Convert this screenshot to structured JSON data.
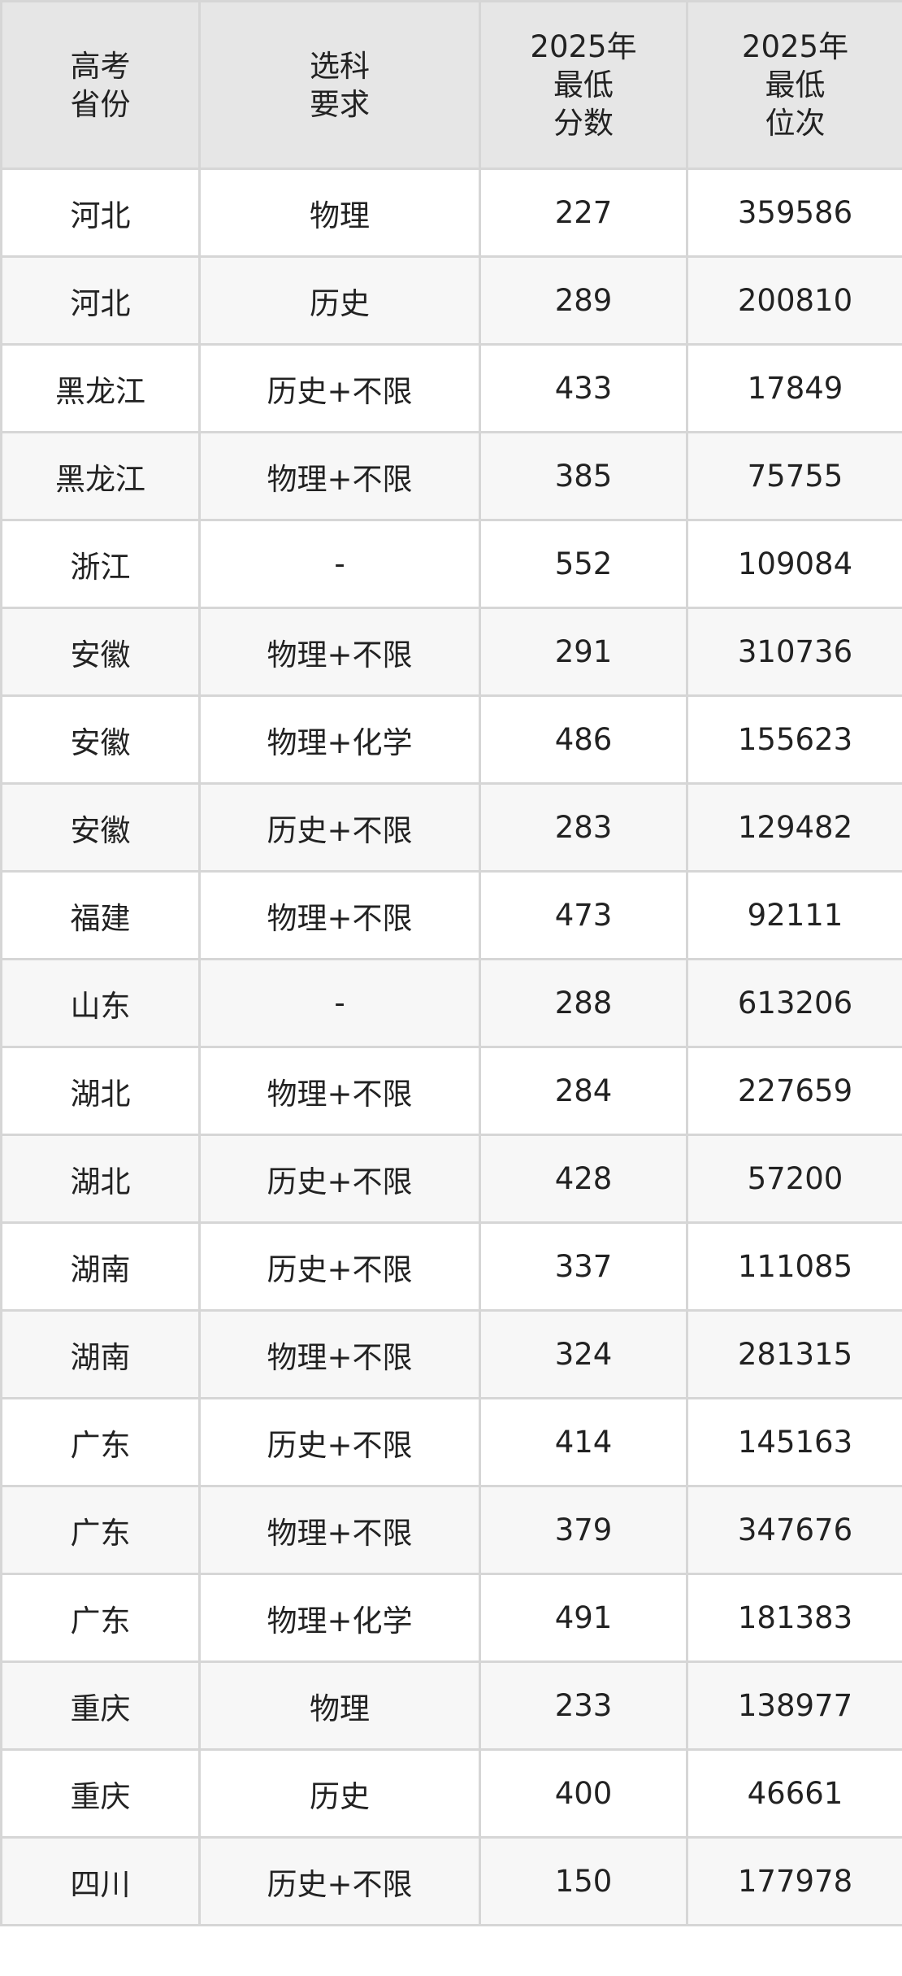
{
  "headers": [
    "高考\n省份",
    "选科\n要求",
    "2025年\n最低\n分数",
    "2025年\n最低\n位次"
  ],
  "rows": [
    [
      "河北",
      "物理",
      "227",
      "359586"
    ],
    [
      "河北",
      "历史",
      "289",
      "200810"
    ],
    [
      "黑龙江",
      "历史+不限",
      "433",
      "17849"
    ],
    [
      "黑龙江",
      "物理+不限",
      "385",
      "75755"
    ],
    [
      "浙江",
      "-",
      "552",
      "109084"
    ],
    [
      "安徽",
      "物理+不限",
      "291",
      "310736"
    ],
    [
      "安徽",
      "物理+化学",
      "486",
      "155623"
    ],
    [
      "安徽",
      "历史+不限",
      "283",
      "129482"
    ],
    [
      "福建",
      "物理+不限",
      "473",
      "92111"
    ],
    [
      "山东",
      "-",
      "288",
      "613206"
    ],
    [
      "湖北",
      "物理+不限",
      "284",
      "227659"
    ],
    [
      "湖北",
      "历史+不限",
      "428",
      "57200"
    ],
    [
      "湖南",
      "历史+不限",
      "337",
      "111085"
    ],
    [
      "湖南",
      "物理+不限",
      "324",
      "281315"
    ],
    [
      "广东",
      "历史+不限",
      "414",
      "145163"
    ],
    [
      "广东",
      "物理+不限",
      "379",
      "347676"
    ],
    [
      "广东",
      "物理+化学",
      "491",
      "181383"
    ],
    [
      "重庆",
      "物理",
      "233",
      "138977"
    ],
    [
      "重庆",
      "历史",
      "400",
      "46661"
    ],
    [
      "四川",
      "历史+不限",
      "150",
      "177978"
    ]
  ]
}
